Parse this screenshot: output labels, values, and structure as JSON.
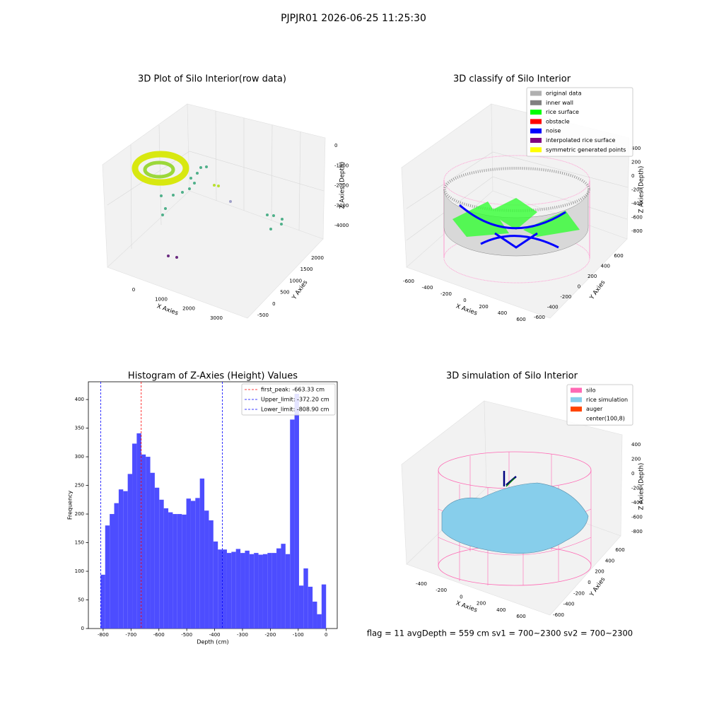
{
  "title": "PJPJR01 2026-06-25 11:25:30",
  "footer": "flag = 11  avgDepth = 559 cm  sv1 = 700~2300  sv2 = 700~2300",
  "chart_data": [
    {
      "type": "scatter3d",
      "title": "3D Plot of Silo Interior(row data)",
      "xlabel": "X Axies",
      "ylabel": "Y Axies",
      "zlabel": "Z Axies (Depth)",
      "xticks": [
        0,
        1000,
        2000,
        3000
      ],
      "yticks": [
        -500,
        0,
        500,
        1000,
        1500,
        2000
      ],
      "zticks": [
        0,
        -1000,
        -2000,
        -3000,
        -4000
      ]
    },
    {
      "type": "scatter3d",
      "title": "3D classify of Silo Interior",
      "xlabel": "X Axies",
      "ylabel": "Y Axies",
      "zlabel": "Z Axies (Depth)",
      "xticks": [
        -600,
        -400,
        -200,
        0,
        200,
        400,
        600
      ],
      "yticks": [
        -600,
        -400,
        -200,
        0,
        200,
        400,
        600
      ],
      "zticks": [
        400,
        200,
        0,
        -200,
        -400,
        -600,
        -800
      ],
      "legend": [
        {
          "name": "original data",
          "color": "#b0b0b0"
        },
        {
          "name": "inner wall",
          "color": "#808080"
        },
        {
          "name": "rice surface",
          "color": "#00ff00"
        },
        {
          "name": "obstacle",
          "color": "#ff0000"
        },
        {
          "name": "noise",
          "color": "#0000ff"
        },
        {
          "name": "interpolated rice surface",
          "color": "#800080"
        },
        {
          "name": "symmetric generated points",
          "color": "#ffff00"
        }
      ]
    },
    {
      "type": "histogram",
      "title": "Histogram of Z-Axies (Height) Values",
      "xlabel": "Depth (cm)",
      "ylabel": "Frequency",
      "color": "#4d4dff",
      "bins": [
        -808.9,
        -792.7,
        -776.5,
        -760.4,
        -744.2,
        -728.0,
        -711.8,
        -695.6,
        -679.5,
        -663.3,
        -647.1,
        -630.9,
        -614.8,
        -598.6,
        -582.4,
        -566.2,
        -550.1,
        -533.9,
        -517.7,
        -501.5,
        -485.3,
        -469.2,
        -453.0,
        -436.8,
        -420.6,
        -404.5,
        -388.3,
        -372.1,
        -355.9,
        -339.7,
        -323.6,
        -307.4,
        -291.2,
        -275.0,
        -258.9,
        -242.7,
        -226.5,
        -210.3,
        -194.2,
        -178.0,
        -161.8,
        -145.6,
        -129.4,
        -113.3,
        -97.1,
        -80.9,
        -64.7,
        -48.5,
        -32.4,
        -16.2,
        0
      ],
      "values": [
        94,
        180,
        200,
        219,
        243,
        240,
        270,
        323,
        341,
        304,
        300,
        272,
        246,
        225,
        210,
        203,
        200,
        200,
        199,
        227,
        223,
        228,
        262,
        206,
        189,
        152,
        138,
        138,
        132,
        134,
        139,
        132,
        136,
        130,
        132,
        129,
        130,
        132,
        132,
        140,
        148,
        130,
        365,
        410,
        75,
        105,
        73,
        47,
        25,
        77
      ],
      "xlim": [
        -853,
        40
      ],
      "ylim": [
        0,
        431
      ],
      "xticks": [
        -800,
        -700,
        -600,
        -500,
        -400,
        -300,
        -200,
        -100,
        0
      ],
      "yticks": [
        0,
        50,
        100,
        150,
        200,
        250,
        300,
        350,
        400
      ],
      "lines": [
        {
          "label": "first_peak: -663.33 cm",
          "value": -663.33,
          "color": "#ff0000"
        },
        {
          "label": "Upper_limit: -372.20 cm",
          "value": -372.2,
          "color": "#0000ff"
        },
        {
          "label": "Lower_limit: -808.90 cm",
          "value": -808.9,
          "color": "#0000ff"
        }
      ]
    },
    {
      "type": "surface3d",
      "title": "3D simulation of Silo Interior",
      "xlabel": "X Axies",
      "ylabel": "Y Axies",
      "zlabel": "Z Axies (Depth)",
      "xticks": [
        -400,
        -200,
        0,
        200,
        400,
        600
      ],
      "yticks": [
        -600,
        -400,
        -200,
        0,
        200,
        400,
        600
      ],
      "zticks": [
        400,
        200,
        0,
        -200,
        -400,
        -600,
        -800
      ],
      "legend": [
        {
          "name": "silo",
          "color": "#ff69b4"
        },
        {
          "name": "rice simulation",
          "color": "#87ceeb"
        },
        {
          "name": "auger",
          "color": "#ff4500"
        },
        {
          "name": "center(100,8)"
        }
      ]
    }
  ]
}
